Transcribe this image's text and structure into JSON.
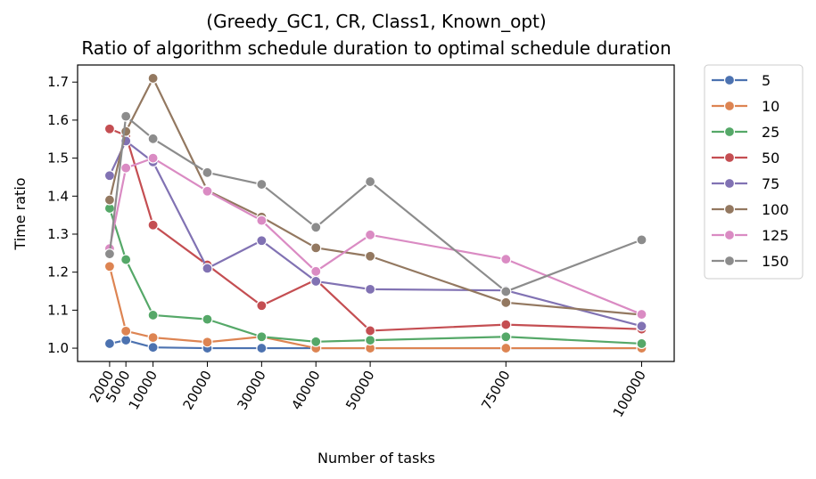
{
  "chart_data": {
    "type": "line",
    "title": "(Greedy_GC1, CR, Class1, Known_opt)",
    "subtitle": "Ratio of algorithm schedule duration to optimal schedule duration",
    "xlabel": "Number of tasks",
    "ylabel": "Time ratio",
    "x": [
      2000,
      5000,
      10000,
      20000,
      30000,
      40000,
      50000,
      75000,
      100000
    ],
    "x_tick_labels": [
      "2000",
      "5000",
      "10000",
      "20000",
      "30000",
      "40000",
      "50000",
      "75000",
      "100000"
    ],
    "xlim": [
      -3900,
      106000
    ],
    "ylim": [
      0.965,
      1.745
    ],
    "y_ticks": [
      1.0,
      1.1,
      1.2,
      1.3,
      1.4,
      1.5,
      1.6,
      1.7
    ],
    "y_tick_labels": [
      "1.0",
      "1.1",
      "1.2",
      "1.3",
      "1.4",
      "1.5",
      "1.6",
      "1.7"
    ],
    "grid": false,
    "legend_placement": "outside-right-top",
    "series": [
      {
        "name": "5",
        "color": "#4c72b0",
        "values": [
          1.012,
          1.021,
          1.002,
          1.0,
          1.0,
          1.0,
          1.0,
          1.0,
          1.0
        ]
      },
      {
        "name": "10",
        "color": "#dd8452",
        "values": [
          1.215,
          1.045,
          1.028,
          1.016,
          1.03,
          1.0,
          1.0,
          1.0,
          1.0
        ]
      },
      {
        "name": "25",
        "color": "#55a868",
        "values": [
          1.368,
          1.233,
          1.087,
          1.076,
          1.03,
          1.017,
          1.021,
          1.03,
          1.012
        ]
      },
      {
        "name": "50",
        "color": "#c44e52",
        "values": [
          1.577,
          1.56,
          1.324,
          1.219,
          1.112,
          1.18,
          1.046,
          1.062,
          1.05
        ]
      },
      {
        "name": "75",
        "color": "#8172b3",
        "values": [
          1.454,
          1.545,
          1.49,
          1.21,
          1.283,
          1.176,
          1.155,
          1.152,
          1.058
        ]
      },
      {
        "name": "100",
        "color": "#937860",
        "values": [
          1.39,
          1.57,
          1.71,
          1.415,
          1.345,
          1.264,
          1.242,
          1.12,
          1.088
        ]
      },
      {
        "name": "125",
        "color": "#da8bc3",
        "values": [
          1.262,
          1.474,
          1.5,
          1.413,
          1.336,
          1.202,
          1.298,
          1.234,
          1.089
        ]
      },
      {
        "name": "150",
        "color": "#8c8c8c",
        "values": [
          1.248,
          1.61,
          1.551,
          1.462,
          1.431,
          1.318,
          1.438,
          1.149,
          1.285
        ]
      }
    ]
  }
}
